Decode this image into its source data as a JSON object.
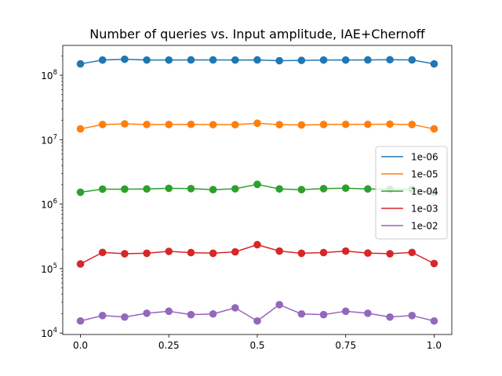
{
  "chart_data": {
    "type": "line",
    "title": "Number of queries vs. Input amplitude, IAE+Chernoff",
    "xlabel": "",
    "ylabel": "",
    "xscale": "linear",
    "yscale": "log",
    "xlim": [
      -0.05,
      1.05
    ],
    "ylim": [
      9500,
      290000000
    ],
    "grid": false,
    "legend_position": "center-right",
    "x_ticks": [
      0.0,
      0.25,
      0.5,
      0.75,
      1.0
    ],
    "x_tick_labels": [
      "0.0",
      "0.25",
      "0.5",
      "0.75",
      "1.0"
    ],
    "y_ticks": [
      10000,
      100000,
      1000000,
      10000000,
      100000000
    ],
    "y_tick_labels": [
      {
        "base": "10",
        "exp": "4"
      },
      {
        "base": "10",
        "exp": "5"
      },
      {
        "base": "10",
        "exp": "6"
      },
      {
        "base": "10",
        "exp": "7"
      },
      {
        "base": "10",
        "exp": "8"
      }
    ],
    "x": [
      0.0,
      0.0625,
      0.125,
      0.1875,
      0.25,
      0.3125,
      0.375,
      0.4375,
      0.5,
      0.5625,
      0.625,
      0.6875,
      0.75,
      0.8125,
      0.875,
      0.9375,
      1.0
    ],
    "series": [
      {
        "name": "1e-06",
        "color": "#1f77b4",
        "values": [
          150000000,
          172000000,
          177000000,
          172000000,
          172000000,
          173000000,
          173000000,
          172000000,
          173000000,
          168000000,
          170000000,
          172000000,
          172000000,
          173000000,
          174000000,
          173000000,
          150000000
        ]
      },
      {
        "name": "1e-05",
        "color": "#ff7f0e",
        "values": [
          14700000,
          17200000,
          17600000,
          17200000,
          17200000,
          17300000,
          17100000,
          17100000,
          18000000,
          17100000,
          16900000,
          17200000,
          17300000,
          17300000,
          17400000,
          17200000,
          14700000
        ]
      },
      {
        "name": "1e-04",
        "color": "#2ca02c",
        "values": [
          1530000,
          1710000,
          1710000,
          1720000,
          1760000,
          1740000,
          1680000,
          1730000,
          2030000,
          1720000,
          1680000,
          1740000,
          1770000,
          1720000,
          1700000,
          1700000,
          1530000
        ]
      },
      {
        "name": "1e-03",
        "color": "#d62728",
        "values": [
          118000,
          178000,
          170000,
          173000,
          185000,
          177000,
          173000,
          182000,
          235000,
          187000,
          173000,
          177000,
          187000,
          174000,
          170000,
          178000,
          120000
        ]
      },
      {
        "name": "1e-02",
        "color": "#9467bd",
        "values": [
          15400,
          18700,
          17700,
          20300,
          21800,
          19300,
          19800,
          24600,
          15400,
          27600,
          19800,
          19300,
          21800,
          20300,
          17700,
          18700,
          15400
        ]
      }
    ]
  }
}
